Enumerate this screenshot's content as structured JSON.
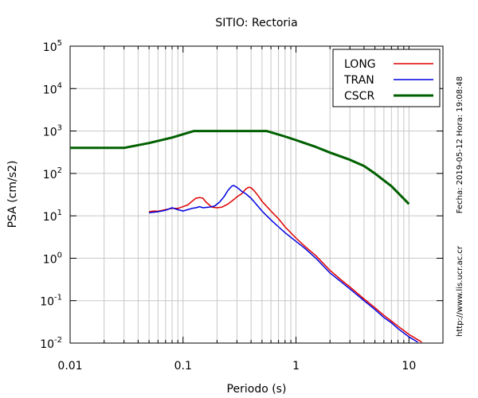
{
  "chart_data": {
    "type": "line",
    "title": "SITIO: Rectoria",
    "xlabel": "Periodo (s)",
    "ylabel": "PSA (cm/s2)",
    "x_scale": "log",
    "y_scale": "log",
    "xlim": [
      0.01,
      20
    ],
    "ylim": [
      0.01,
      100000
    ],
    "x_ticks": [
      {
        "value": 0.01,
        "label": "0.01"
      },
      {
        "value": 0.1,
        "label": "0.1"
      },
      {
        "value": 1,
        "label": "1"
      },
      {
        "value": 10,
        "label": "10"
      }
    ],
    "y_ticks": [
      {
        "value": 0.01,
        "base": "10",
        "exp": "-2"
      },
      {
        "value": 0.1,
        "base": "10",
        "exp": "-1"
      },
      {
        "value": 1,
        "base": "10",
        "exp": "0"
      },
      {
        "value": 10,
        "base": "10",
        "exp": "1"
      },
      {
        "value": 100,
        "base": "10",
        "exp": "2"
      },
      {
        "value": 1000,
        "base": "10",
        "exp": "3"
      },
      {
        "value": 10000,
        "base": "10",
        "exp": "4"
      },
      {
        "value": 100000,
        "base": "10",
        "exp": "5"
      }
    ],
    "grid": true,
    "legend_position": "top-right",
    "series": [
      {
        "name": "LONG",
        "color": "#e00000",
        "points": [
          [
            0.05,
            12.5
          ],
          [
            0.055,
            13
          ],
          [
            0.06,
            12.8
          ],
          [
            0.07,
            14
          ],
          [
            0.08,
            15
          ],
          [
            0.09,
            15
          ],
          [
            0.1,
            16.5
          ],
          [
            0.11,
            18
          ],
          [
            0.12,
            22
          ],
          [
            0.13,
            26
          ],
          [
            0.14,
            27
          ],
          [
            0.15,
            26
          ],
          [
            0.16,
            21
          ],
          [
            0.18,
            16
          ],
          [
            0.2,
            15.5
          ],
          [
            0.22,
            16
          ],
          [
            0.25,
            19
          ],
          [
            0.28,
            24
          ],
          [
            0.3,
            28
          ],
          [
            0.33,
            33
          ],
          [
            0.36,
            43
          ],
          [
            0.38,
            47
          ],
          [
            0.4,
            46
          ],
          [
            0.43,
            38
          ],
          [
            0.47,
            28
          ],
          [
            0.5,
            22
          ],
          [
            0.6,
            13
          ],
          [
            0.7,
            8.5
          ],
          [
            0.8,
            5.5
          ],
          [
            1.0,
            3.0
          ],
          [
            1.2,
            1.9
          ],
          [
            1.5,
            1.15
          ],
          [
            2.0,
            0.52
          ],
          [
            2.5,
            0.31
          ],
          [
            3.0,
            0.21
          ],
          [
            4.0,
            0.11
          ],
          [
            5.0,
            0.068
          ],
          [
            6.0,
            0.045
          ],
          [
            7.0,
            0.033
          ],
          [
            8.0,
            0.025
          ],
          [
            10.0,
            0.016
          ],
          [
            12.0,
            0.012
          ],
          [
            13.0,
            0.0105
          ]
        ]
      },
      {
        "name": "TRAN",
        "color": "#0000e0",
        "points": [
          [
            0.05,
            11.8
          ],
          [
            0.06,
            12.5
          ],
          [
            0.07,
            13.5
          ],
          [
            0.08,
            15.5
          ],
          [
            0.09,
            14
          ],
          [
            0.1,
            13
          ],
          [
            0.11,
            14
          ],
          [
            0.12,
            15
          ],
          [
            0.13,
            15.5
          ],
          [
            0.14,
            16.5
          ],
          [
            0.15,
            15.5
          ],
          [
            0.17,
            16
          ],
          [
            0.19,
            17
          ],
          [
            0.21,
            21
          ],
          [
            0.23,
            28
          ],
          [
            0.25,
            40
          ],
          [
            0.27,
            50
          ],
          [
            0.28,
            52
          ],
          [
            0.3,
            47
          ],
          [
            0.33,
            38
          ],
          [
            0.36,
            33
          ],
          [
            0.4,
            26
          ],
          [
            0.45,
            18
          ],
          [
            0.5,
            13
          ],
          [
            0.6,
            8
          ],
          [
            0.7,
            5.5
          ],
          [
            0.8,
            4
          ],
          [
            1.0,
            2.5
          ],
          [
            1.2,
            1.7
          ],
          [
            1.5,
            1.0
          ],
          [
            2.0,
            0.45
          ],
          [
            2.5,
            0.28
          ],
          [
            3.0,
            0.19
          ],
          [
            4.0,
            0.1
          ],
          [
            5.0,
            0.062
          ],
          [
            6.0,
            0.04
          ],
          [
            7.0,
            0.03
          ],
          [
            8.0,
            0.022
          ],
          [
            10.0,
            0.014
          ],
          [
            12.0,
            0.0105
          ]
        ]
      },
      {
        "name": "CSCR",
        "color": "#006000",
        "points": [
          [
            0.01,
            400
          ],
          [
            0.03,
            400
          ],
          [
            0.05,
            520
          ],
          [
            0.08,
            700
          ],
          [
            0.125,
            1000
          ],
          [
            0.2,
            1000
          ],
          [
            0.3,
            1000
          ],
          [
            0.55,
            1000
          ],
          [
            0.8,
            740
          ],
          [
            1.0,
            610
          ],
          [
            1.5,
            420
          ],
          [
            2.0,
            310
          ],
          [
            3.0,
            210
          ],
          [
            4.0,
            150
          ],
          [
            5.0,
            100
          ],
          [
            7.0,
            50
          ],
          [
            10.0,
            19
          ]
        ]
      }
    ]
  },
  "side_text": {
    "date": "Fecha: 2019-05-12  Hora: 19:08:48",
    "url": "http://www.lis.ucr.ac.cr"
  }
}
